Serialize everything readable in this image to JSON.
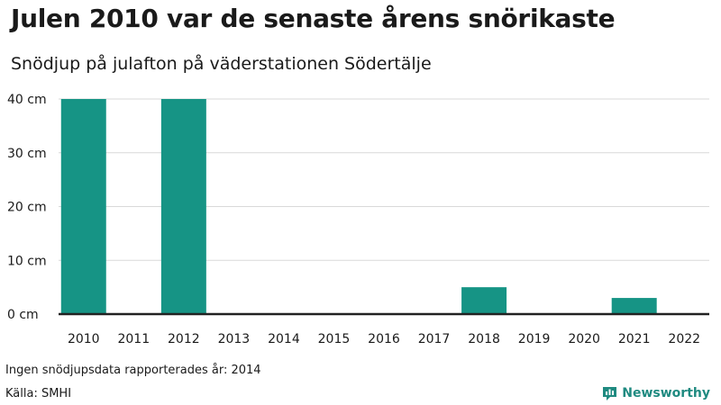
{
  "header": {
    "title": "Julen 2010 var de senaste årens snörikaste",
    "subtitle": "Snödjup på julafton på väderstationen Södertälje"
  },
  "footer": {
    "note": "Ingen snödjupsdata rapporterades år: 2014",
    "source": "Källa: SMHI",
    "brand": "Newsworthy"
  },
  "colors": {
    "bar": "#169485",
    "grid": "#d9d9d9",
    "axis": "#222222",
    "brand": "#1f8a80"
  },
  "chart_data": {
    "type": "bar",
    "title": "Julen 2010 var de senaste årens snörikaste",
    "subtitle": "Snödjup på julafton på väderstationen Södertälje",
    "xlabel": "",
    "ylabel": "",
    "categories": [
      "2010",
      "2011",
      "2012",
      "2013",
      "2014",
      "2015",
      "2016",
      "2017",
      "2018",
      "2019",
      "2020",
      "2021",
      "2022"
    ],
    "values": [
      40,
      0,
      40,
      0,
      null,
      0,
      0,
      0,
      5,
      0,
      0,
      3,
      0
    ],
    "ylim": [
      0,
      40
    ],
    "yticks": [
      0,
      10,
      20,
      30,
      40
    ],
    "ytick_labels": [
      "0 cm",
      "10 cm",
      "20 cm",
      "30 cm",
      "40 cm"
    ],
    "grid": true,
    "legend": "none"
  }
}
